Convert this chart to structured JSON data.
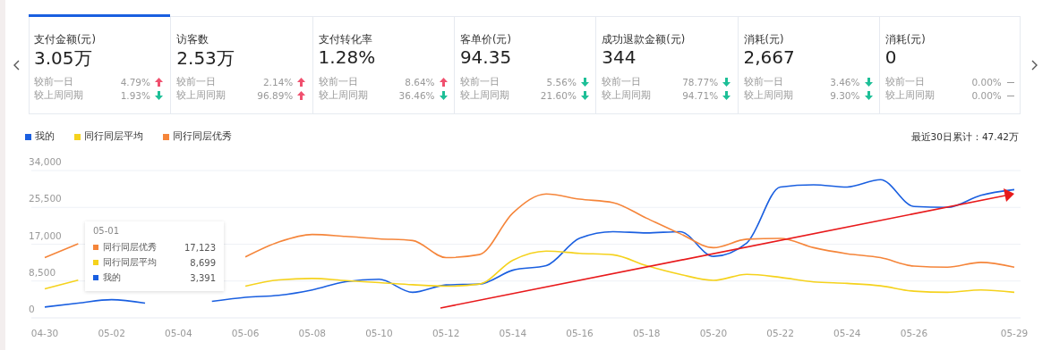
{
  "chart_data": [
    {
      "type": "other",
      "title": "支付金额(元)",
      "subtitle": "3.05万",
      "categories": [
        "较前一日",
        "较上周同期"
      ],
      "annotations": [
        "4.79%",
        "1.93%"
      ],
      "colors": [
        "#f0506e",
        "#1dbf97"
      ]
    },
    {
      "type": "other",
      "title": "访客数",
      "subtitle": "2.53万",
      "categories": [
        "较前一日",
        "较上周同期"
      ],
      "annotations": [
        "2.14%",
        "96.89%"
      ],
      "colors": [
        "#f0506e",
        "#f0506e"
      ]
    },
    {
      "type": "other",
      "title": "支付转化率",
      "subtitle": "1.28%",
      "categories": [
        "较前一日",
        "较上周同期"
      ],
      "annotations": [
        "8.64%",
        "36.46%"
      ],
      "colors": [
        "#f0506e",
        "#1dbf97"
      ]
    },
    {
      "type": "other",
      "title": "客单价(元)",
      "subtitle": "94.35",
      "categories": [
        "较前一日",
        "较上周同期"
      ],
      "annotations": [
        "5.56%",
        "21.60%"
      ],
      "colors": [
        "#1dbf97",
        "#1dbf97"
      ]
    },
    {
      "type": "other",
      "title": "成功退款金额(元)",
      "subtitle": "344",
      "categories": [
        "较前一日",
        "较上周同期"
      ],
      "annotations": [
        "78.77%",
        "94.71%"
      ],
      "colors": [
        "#1dbf97",
        "#1dbf97"
      ]
    },
    {
      "type": "other",
      "title": "消耗(元)",
      "subtitle": "2,667",
      "categories": [
        "较前一日",
        "较上周同期"
      ],
      "annotations": [
        "3.46%",
        "9.30%"
      ],
      "colors": [
        "#1dbf97",
        "#1dbf97"
      ]
    },
    {
      "type": "other",
      "title": "消耗(元)",
      "subtitle": "0",
      "categories": [
        "较前一日",
        "较上周同期"
      ],
      "annotations": [
        "0.00%",
        "0.00%"
      ],
      "colors": [
        "#999999",
        "#999999"
      ]
    },
    {
      "type": "line",
      "categories": [
        "04-30",
        null,
        "05-02",
        null,
        "05-04",
        null,
        "05-06",
        null,
        "05-08",
        null,
        "05-10",
        null,
        "05-12",
        null,
        "05-14",
        null,
        "05-16",
        null,
        "05-18",
        null,
        "05-20",
        null,
        "05-22",
        null,
        "05-24",
        null,
        "05-26",
        null,
        null,
        "05-29"
      ],
      "series": [
        {
          "name": "我的",
          "color": "#1a5fe0",
          "values": [
            2500,
            3400,
            4200,
            3400,
            null,
            3800,
            4750,
            5200,
            6450,
            8350,
            8900,
            5900,
            7600,
            7800,
            11000,
            12050,
            18400,
            19900,
            19600,
            19900,
            14200,
            17300,
            30200,
            30700,
            30200,
            31900,
            25700,
            25500,
            28300,
            29600
          ]
        },
        {
          "name": "同行同层平均",
          "color": "#f5d21d",
          "values": [
            6700,
            8700,
            null,
            null,
            null,
            null,
            7300,
            8750,
            9100,
            8600,
            8150,
            7650,
            7300,
            7800,
            13300,
            15400,
            14900,
            14550,
            12050,
            10050,
            8650,
            10050,
            9350,
            8300,
            7950,
            7400,
            6150,
            5900,
            6450,
            5900
          ]
        },
        {
          "name": "同行同层优秀",
          "color": "#f5853a",
          "values": [
            13900,
            17100,
            null,
            null,
            null,
            null,
            14050,
            17500,
            19250,
            18800,
            18250,
            17850,
            13900,
            14600,
            24200,
            28600,
            27400,
            26600,
            23000,
            19450,
            16200,
            18150,
            18350,
            16200,
            14800,
            13900,
            11950,
            11700,
            12800,
            11700
          ]
        }
      ],
      "ylim": [
        0,
        34000
      ],
      "yticks": [
        0,
        {
          "value": 8500,
          "label": "8,500"
        },
        {
          "value": 17000,
          "label": "17,000"
        },
        {
          "value": 25500,
          "label": "25,500"
        },
        {
          "value": 34000,
          "label": "34,000"
        }
      ],
      "grid": "y",
      "legend": "top left",
      "marker": "none",
      "line_style": "solid",
      "annotations": [
        "最近30日累计：47.42万",
        "05-01",
        "同行同层优秀",
        "17,123",
        "同行同层平均",
        "8,699",
        "我的",
        "3,391"
      ]
    }
  ]
}
